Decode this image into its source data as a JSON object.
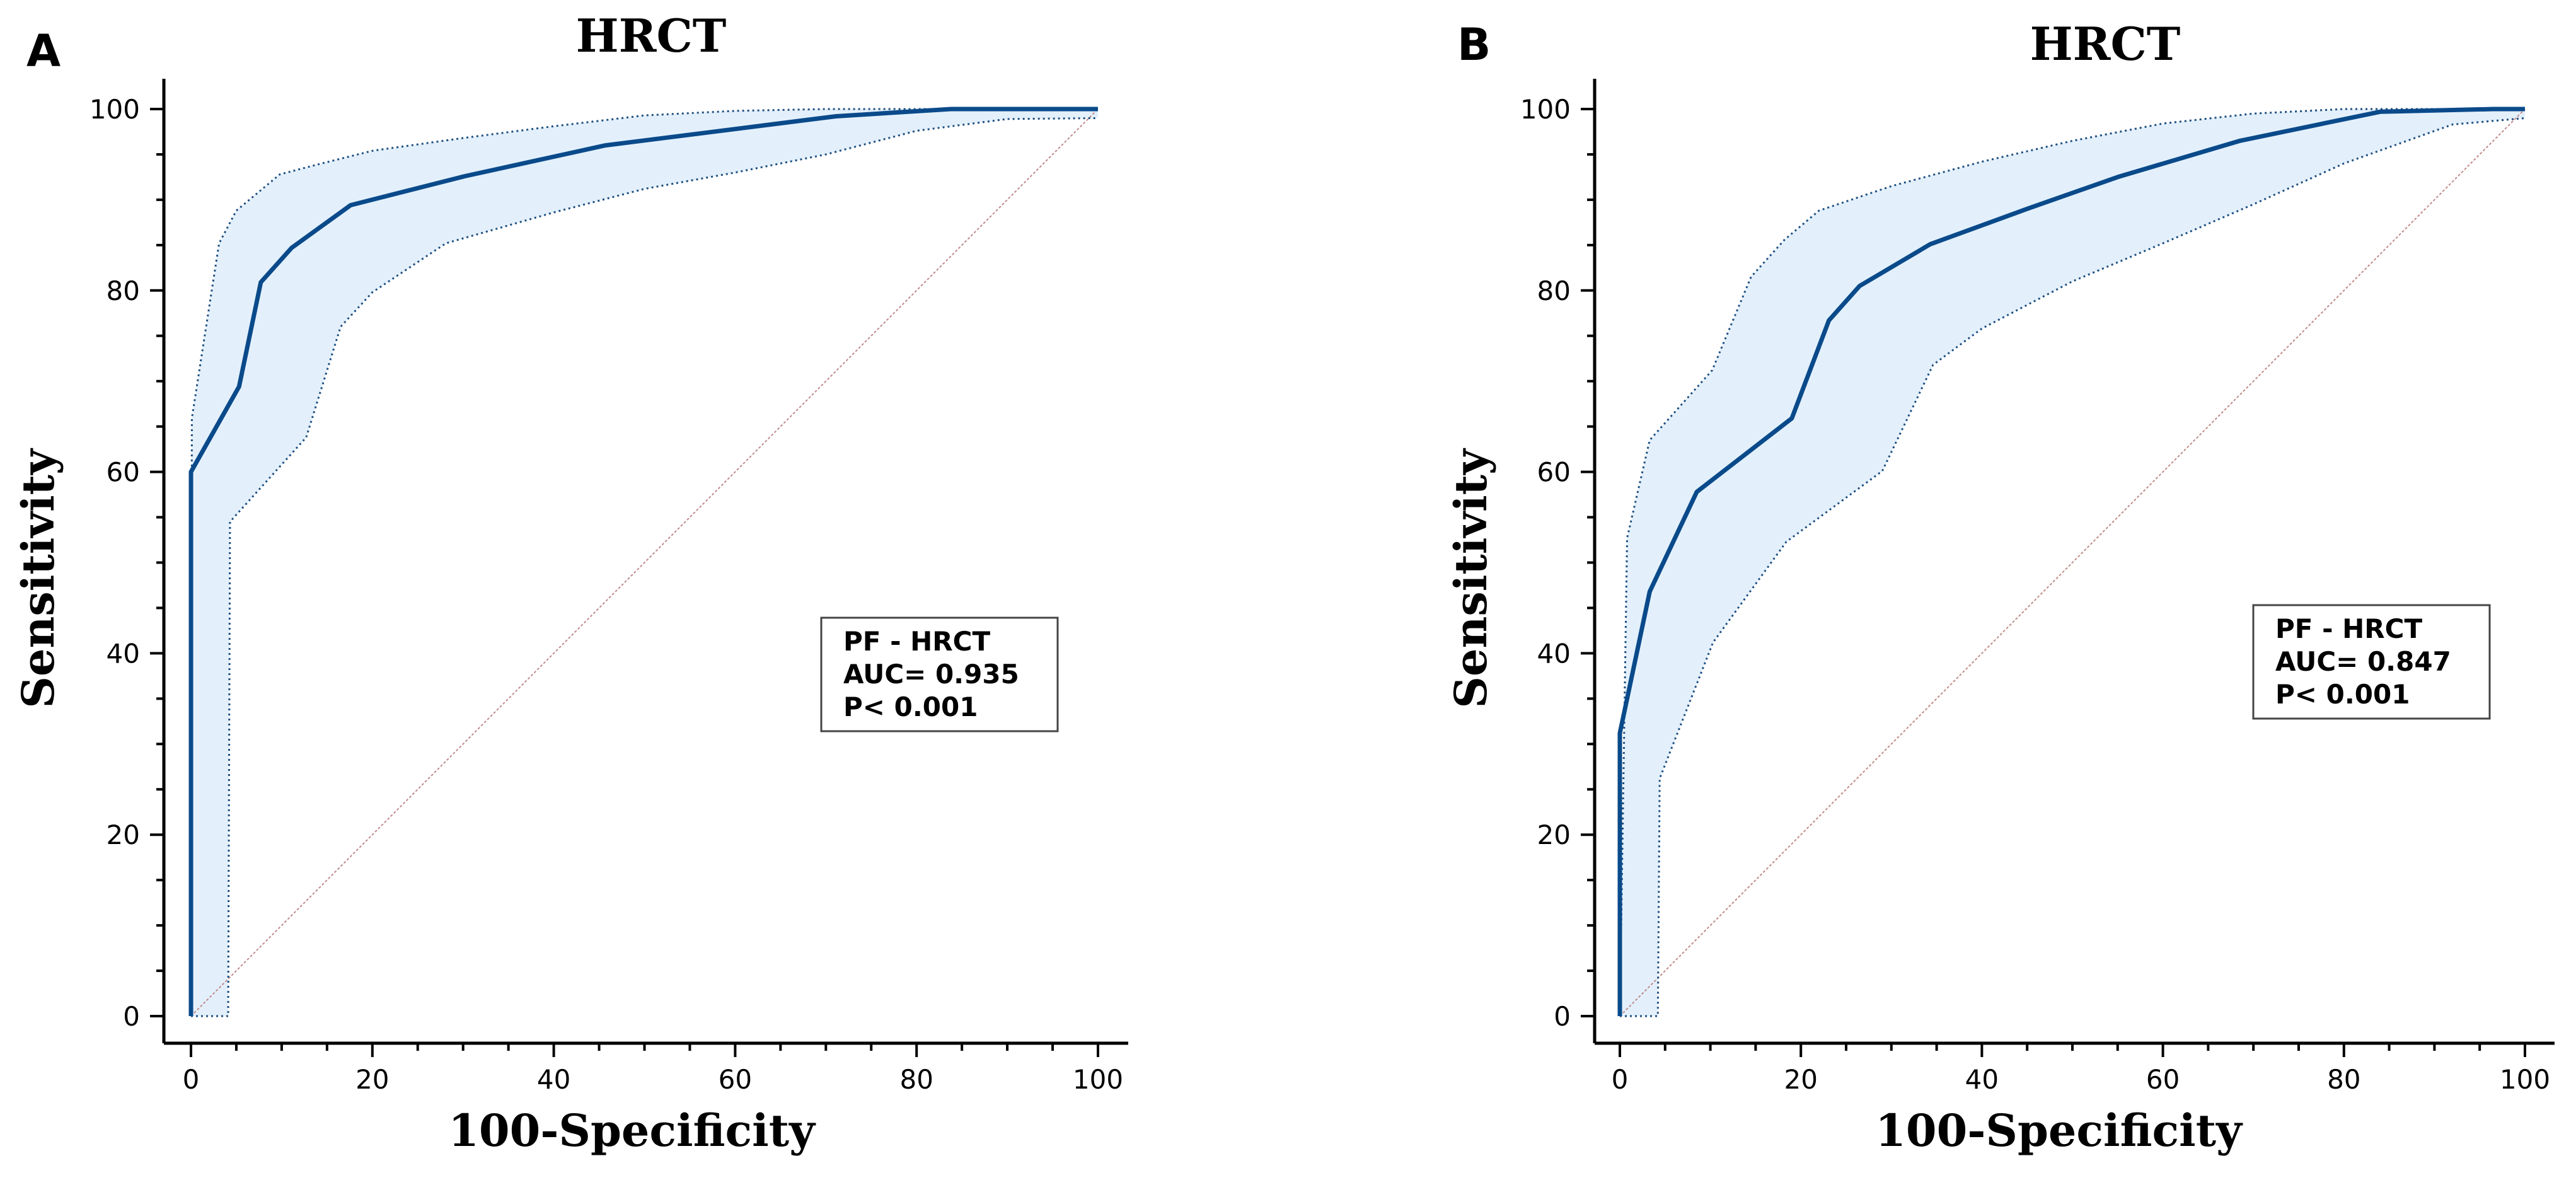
{
  "chart_data": [
    {
      "panel": "A",
      "type": "line",
      "title": "HRCT",
      "xlabel": "100-Specificity",
      "ylabel": "Sensitivity",
      "xlim": [
        0,
        100
      ],
      "ylim": [
        0,
        100
      ],
      "xticks": [
        0,
        20,
        40,
        60,
        80,
        100
      ],
      "yticks": [
        0,
        20,
        40,
        60,
        80,
        100
      ],
      "legend": {
        "position": "center-right",
        "lines": [
          "PF - HRCT",
          "AUC= 0.935",
          "P< 0.001"
        ]
      },
      "series": [
        {
          "name": "ROC",
          "x": [
            0,
            0,
            5.3,
            7.7,
            11.1,
            17.6,
            30.2,
            45.7,
            71.1,
            83.8,
            100
          ],
          "y": [
            0,
            60.0,
            69.4,
            80.9,
            84.7,
            89.4,
            92.6,
            96.0,
            99.2,
            100,
            100
          ]
        },
        {
          "name": "CI upper",
          "x": [
            0,
            0.1,
            3.1,
            5.0,
            9.8,
            14.0,
            20.0,
            30.0,
            40.0,
            50.0,
            60.0,
            70.0,
            80.0,
            90.0,
            100
          ],
          "y": [
            0,
            65.9,
            85.2,
            88.8,
            92.8,
            93.9,
            95.4,
            96.8,
            98.1,
            99.3,
            99.8,
            100,
            100,
            100,
            100
          ]
        },
        {
          "name": "CI lower",
          "x": [
            0,
            4.1,
            4.3,
            12.7,
            16.5,
            20.0,
            28.1,
            40.0,
            50.0,
            60.0,
            70.0,
            80.0,
            90.0,
            100
          ],
          "y": [
            0,
            0,
            54.5,
            63.8,
            76.0,
            79.8,
            85.2,
            88.6,
            91.2,
            93.0,
            95.0,
            97.6,
            98.9,
            99.0
          ]
        },
        {
          "name": "Reference",
          "x": [
            0,
            100
          ],
          "y": [
            0,
            100
          ]
        }
      ]
    },
    {
      "panel": "B",
      "type": "line",
      "title": "HRCT",
      "xlabel": "100-Specificity",
      "ylabel": "Sensitivity",
      "xlim": [
        0,
        100
      ],
      "ylim": [
        0,
        100
      ],
      "xticks": [
        0,
        20,
        40,
        60,
        80,
        100
      ],
      "yticks": [
        0,
        20,
        40,
        60,
        80,
        100
      ],
      "legend": {
        "position": "center-right",
        "lines": [
          "PF - HRCT",
          "AUC= 0.847",
          "P< 0.001"
        ]
      },
      "series": [
        {
          "name": "ROC",
          "x": [
            0,
            0,
            3.3,
            8.5,
            19.0,
            23.1,
            26.5,
            34.3,
            45.0,
            55.0,
            68.5,
            84.0,
            96.5,
            100
          ],
          "y": [
            0,
            31.2,
            46.8,
            57.8,
            65.9,
            76.7,
            80.5,
            85.1,
            89.0,
            92.5,
            96.5,
            99.7,
            100,
            100
          ]
        },
        {
          "name": "CI upper",
          "x": [
            0,
            0.8,
            3.3,
            10.2,
            14.5,
            18.2,
            22.0,
            30.0,
            40.0,
            50.0,
            60.0,
            70.0,
            80.0,
            90.0,
            100
          ],
          "y": [
            0,
            52.7,
            63.5,
            71.2,
            81.5,
            85.6,
            88.8,
            91.5,
            94.2,
            96.5,
            98.4,
            99.5,
            100,
            100,
            100
          ]
        },
        {
          "name": "CI lower",
          "x": [
            0,
            4.2,
            4.4,
            10.3,
            18.4,
            29.0,
            34.6,
            40.0,
            50.0,
            60.0,
            70.0,
            80.0,
            92.0,
            100
          ],
          "y": [
            0,
            0,
            26.2,
            41.2,
            52.3,
            60.1,
            71.8,
            75.8,
            81.0,
            85.2,
            89.5,
            94.0,
            98.3,
            99.0
          ]
        },
        {
          "name": "Reference",
          "x": [
            0,
            100
          ],
          "y": [
            0,
            100
          ]
        }
      ]
    }
  ]
}
